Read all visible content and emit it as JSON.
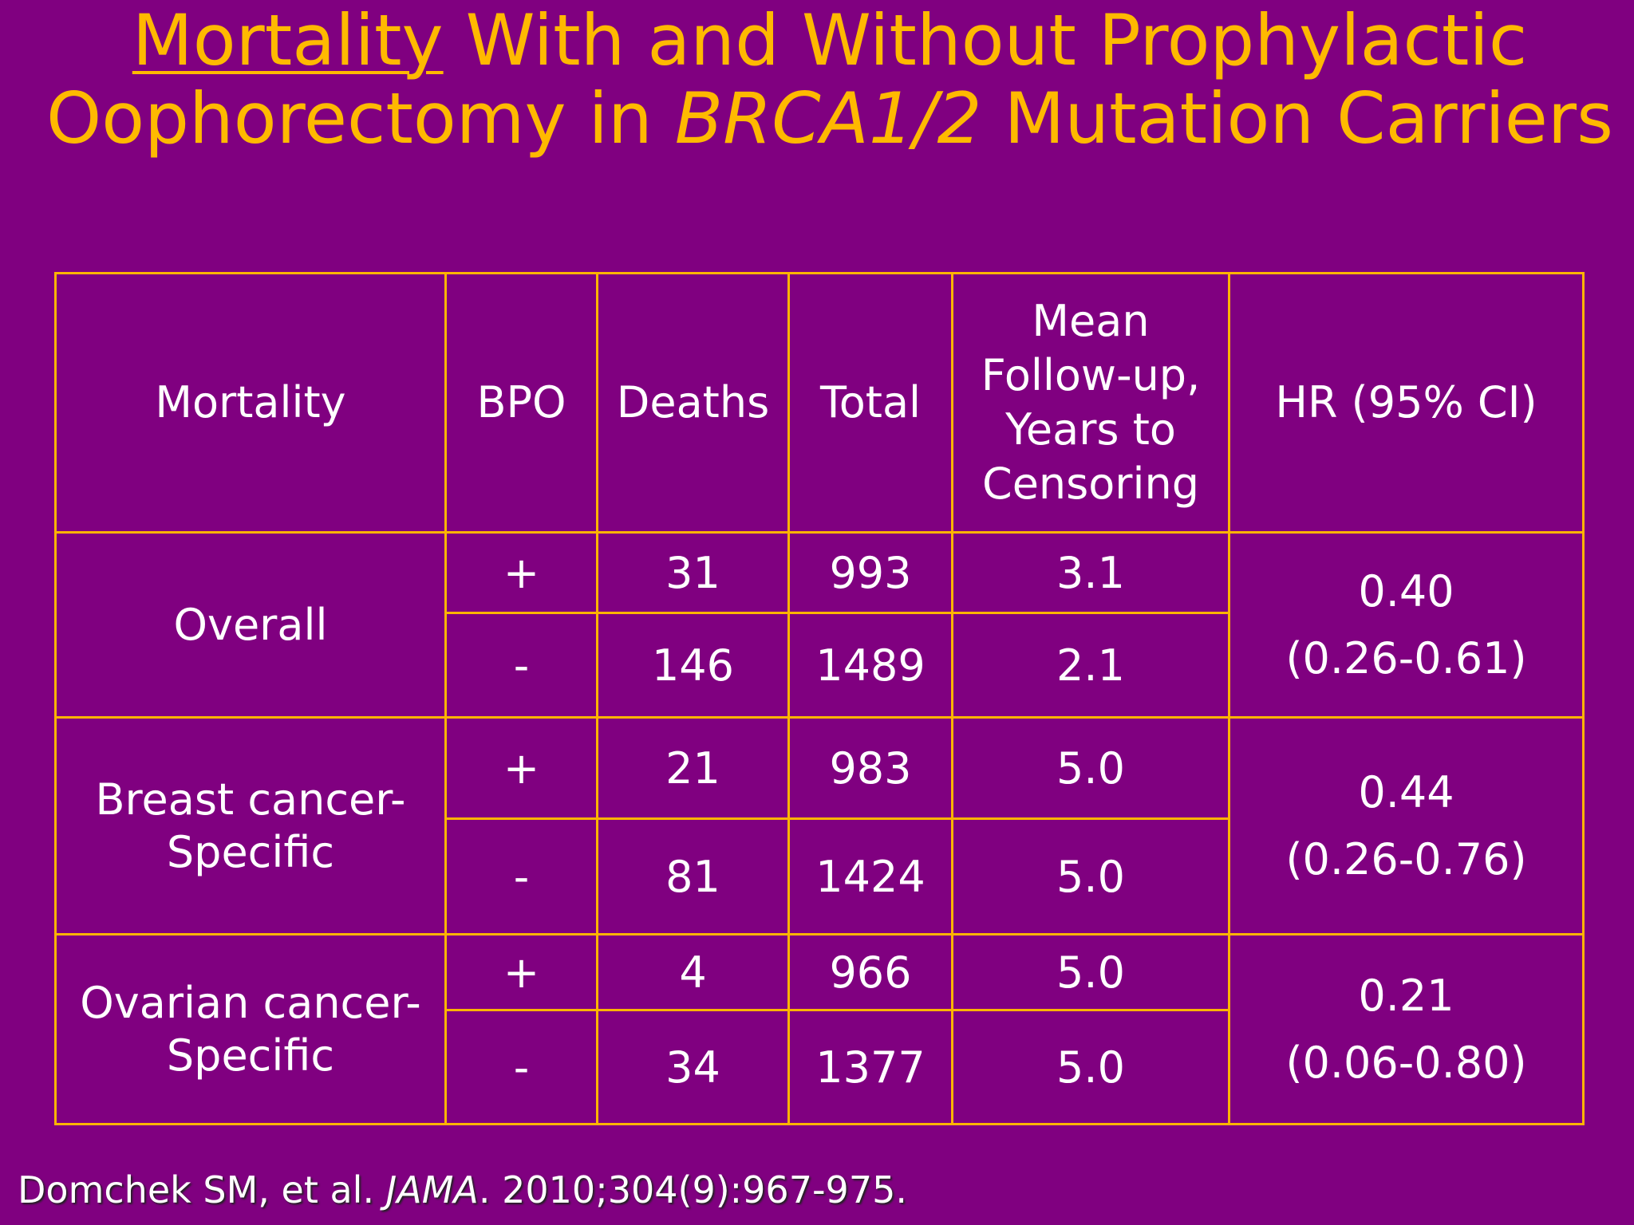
{
  "title": {
    "underlined": "Mortality",
    "part1": " With and Without Prophylactic Oophorectomy in ",
    "italic": "BRCA1/2",
    "part2": " Mutation Carriers"
  },
  "table": {
    "headers": {
      "mortality": "Mortality",
      "bpo": "BPO",
      "deaths": "Deaths",
      "total": "Total",
      "followup": "Mean Follow-up, Years to Censoring",
      "hr": "HR (95% CI)"
    },
    "groups": [
      {
        "label": "Overall",
        "hr_value": "0.40",
        "hr_ci": "(0.26-0.61)",
        "rows": [
          {
            "bpo": "+",
            "deaths": "31",
            "total": "993",
            "followup": "3.1"
          },
          {
            "bpo": "-",
            "deaths": "146",
            "total": "1489",
            "followup": "2.1"
          }
        ]
      },
      {
        "label": "Breast cancer-Specific",
        "hr_value": "0.44",
        "hr_ci": "(0.26-0.76)",
        "rows": [
          {
            "bpo": "+",
            "deaths": "21",
            "total": "983",
            "followup": "5.0"
          },
          {
            "bpo": "-",
            "deaths": "81",
            "total": "1424",
            "followup": "5.0"
          }
        ]
      },
      {
        "label": "Ovarian cancer-Specific",
        "hr_value": "0.21",
        "hr_ci": "(0.06-0.80)",
        "rows": [
          {
            "bpo": "+",
            "deaths": "4",
            "total": "966",
            "followup": "5.0"
          },
          {
            "bpo": "-",
            "deaths": "34",
            "total": "1377",
            "followup": "5.0"
          }
        ]
      }
    ]
  },
  "citation": {
    "authors": "Domchek SM, et al. ",
    "journal": "JAMA",
    "details": ". 2010;304(9):967-975."
  }
}
